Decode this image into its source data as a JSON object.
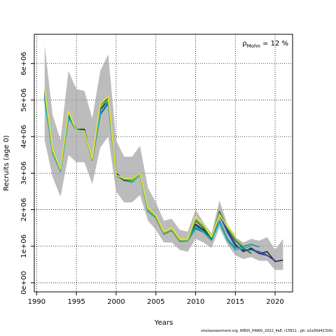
{
  "chart_data": {
    "type": "line",
    "xlabel": "Years",
    "ylabel": "Recruits (age 0)",
    "xlim": [
      1989.7,
      2022.2
    ],
    "ylim": [
      -250000,
      6800000
    ],
    "x_ticks": [
      1990,
      1995,
      2000,
      2005,
      2010,
      2015,
      2020
    ],
    "x_tick_labels": [
      "1990",
      "1995",
      "2000",
      "2005",
      "2010",
      "2015",
      "2020"
    ],
    "y_ticks": [
      0,
      1000000,
      2000000,
      3000000,
      4000000,
      5000000,
      6000000
    ],
    "y_tick_labels": [
      "0e+00",
      "1e+06",
      "2e+06",
      "3e+06",
      "4e+06",
      "5e+06",
      "6e+06"
    ],
    "grid": true,
    "annotation": {
      "main": "ρ",
      "sub": "Mohn",
      "rest": " = 12 %"
    },
    "band": {
      "x": [
        1991,
        1992,
        1993,
        1994,
        1995,
        1996,
        1997,
        1998,
        1999,
        2000,
        2001,
        2002,
        2003,
        2004,
        2005,
        2006,
        2007,
        2008,
        2009,
        2010,
        2011,
        2012,
        2013,
        2014,
        2015,
        2016,
        2017,
        2018,
        2019,
        2020,
        2021
      ],
      "upper": [
        6500000,
        4600000,
        3900000,
        5800000,
        5300000,
        5250000,
        4500000,
        5800000,
        6250000,
        3900000,
        3450000,
        3450000,
        3750000,
        2600000,
        2200000,
        1700000,
        1750000,
        1450000,
        1400000,
        2000000,
        1650000,
        1350000,
        2250000,
        1600000,
        1250000,
        1100000,
        1200000,
        1150000,
        1250000,
        900000,
        1200000
      ],
      "lower": [
        3900000,
        2900000,
        2350000,
        3500000,
        3300000,
        3300000,
        2700000,
        3700000,
        4000000,
        2500000,
        2200000,
        2200000,
        2400000,
        1700000,
        1450000,
        1100000,
        1100000,
        900000,
        850000,
        1200000,
        1100000,
        950000,
        1500000,
        1050000,
        750000,
        650000,
        700000,
        600000,
        600000,
        350000,
        350000
      ]
    },
    "series": [
      {
        "color": "#2b2b2b",
        "x": [
          1991,
          1992,
          1993,
          1994,
          1995,
          1996,
          1997,
          1998,
          1999,
          2000,
          2001,
          2002,
          2003,
          2004,
          2005,
          2006,
          2007,
          2008,
          2009,
          2010,
          2011,
          2012,
          2013,
          2014,
          2015,
          2016,
          2017,
          2018,
          2019,
          2020,
          2021
        ],
        "y": [
          5200000,
          3600000,
          3100000,
          4600000,
          4200000,
          4200000,
          3350000,
          4750000,
          5000000,
          3000000,
          2800000,
          2850000,
          3000000,
          2000000,
          1800000,
          1350000,
          1450000,
          1150000,
          1150000,
          1600000,
          1450000,
          1200000,
          1950000,
          1450000,
          1050000,
          850000,
          950000,
          800000,
          850000,
          580000,
          620000
        ]
      },
      {
        "color": "#3b2a8f",
        "x": [
          1991,
          1992,
          1993,
          1994,
          1995,
          1996,
          1997,
          1998,
          1999,
          2000,
          2001,
          2002,
          2003,
          2004,
          2005,
          2006,
          2007,
          2008,
          2009,
          2010,
          2011,
          2012,
          2013,
          2014,
          2015,
          2016,
          2017,
          2018,
          2019,
          2020
        ],
        "y": [
          5150000,
          3600000,
          3100000,
          4550000,
          4150000,
          4150000,
          3350000,
          4650000,
          4950000,
          2950000,
          2800000,
          2800000,
          2950000,
          1980000,
          1780000,
          1340000,
          1440000,
          1140000,
          1150000,
          1560000,
          1420000,
          1180000,
          1900000,
          1420000,
          1030000,
          870000,
          920000,
          800000,
          750000,
          600000
        ]
      },
      {
        "color": "#2a5db0",
        "x": [
          1991,
          1992,
          1993,
          1994,
          1995,
          1996,
          1997,
          1998,
          1999,
          2000,
          2001,
          2002,
          2003,
          2004,
          2005,
          2006,
          2007,
          2008,
          2009,
          2010,
          2011,
          2012,
          2013,
          2014,
          2015,
          2016,
          2017,
          2018,
          2019
        ],
        "y": [
          5100000,
          3550000,
          3050000,
          4550000,
          4150000,
          4150000,
          3350000,
          4600000,
          4900000,
          2950000,
          2800000,
          2750000,
          2950000,
          1950000,
          1780000,
          1330000,
          1430000,
          1130000,
          1140000,
          1500000,
          1400000,
          1170000,
          1850000,
          1380000,
          1000000,
          900000,
          900000,
          850000,
          760000
        ]
      },
      {
        "color": "#1d8f8f",
        "x": [
          1991,
          1992,
          1993,
          1994,
          1995,
          1996,
          1997,
          1998,
          1999,
          2000,
          2001,
          2002,
          2003,
          2004,
          2005,
          2006,
          2007,
          2008,
          2009,
          2010,
          2011,
          2012,
          2013,
          2014,
          2015,
          2016,
          2017,
          2018
        ],
        "y": [
          5050000,
          3550000,
          3050000,
          4500000,
          4200000,
          4150000,
          3350000,
          4650000,
          4950000,
          2950000,
          2800000,
          2780000,
          2950000,
          1950000,
          1800000,
          1340000,
          1440000,
          1140000,
          1150000,
          1480000,
          1380000,
          1160000,
          1700000,
          1200000,
          950000,
          1000000,
          1050000,
          980000
        ]
      },
      {
        "color": "#18b5b5",
        "x": [
          1991,
          1992,
          1993,
          1994,
          1995,
          1996,
          1997,
          1998,
          1999,
          2000,
          2001,
          2002,
          2003,
          2004,
          2005,
          2006,
          2007,
          2008,
          2009,
          2010,
          2011,
          2012,
          2013,
          2014,
          2015,
          2016,
          2017
        ],
        "y": [
          5000000,
          3550000,
          3050000,
          4500000,
          4200000,
          4150000,
          3350000,
          4650000,
          5000000,
          2950000,
          2800000,
          2750000,
          2950000,
          1950000,
          1800000,
          1350000,
          1450000,
          1150000,
          1150000,
          1550000,
          1400000,
          1170000,
          1650000,
          1150000,
          900000,
          950000,
          1000000
        ]
      },
      {
        "color": "#1e6e2e",
        "x": [
          1991,
          1992,
          1993,
          1994,
          1995,
          1996,
          1997,
          1998,
          1999,
          2000,
          2001,
          2002,
          2003,
          2004,
          2005,
          2006,
          2007,
          2008,
          2009,
          2010,
          2011,
          2012,
          2013,
          2014,
          2015,
          2016,
          2017
        ],
        "y": [
          5250000,
          3600000,
          3100000,
          4650000,
          4150000,
          4150000,
          3350000,
          4850000,
          5050000,
          2950000,
          2800000,
          2800000,
          2950000,
          2000000,
          1800000,
          1350000,
          1450000,
          1150000,
          1150000,
          1700000,
          1500000,
          1200000,
          1950000,
          1500000,
          1150000,
          950000,
          800000
        ]
      },
      {
        "color": "#7cc042",
        "x": [
          1991,
          1992,
          1993,
          1994,
          1995,
          1996,
          1997,
          1998,
          1999,
          2000,
          2001,
          2002,
          2003,
          2004,
          2005,
          2006,
          2007,
          2008,
          2009,
          2010,
          2011,
          2012,
          2013,
          2014,
          2015,
          2016
        ],
        "y": [
          5250000,
          3600000,
          3100000,
          4650000,
          4150000,
          4150000,
          3350000,
          4850000,
          5000000,
          2950000,
          2850000,
          2800000,
          2950000,
          2000000,
          1800000,
          1350000,
          1450000,
          1150000,
          1150000,
          1750000,
          1550000,
          1250000,
          1900000,
          1500000,
          1200000,
          1000000
        ]
      },
      {
        "color": "#e8e338",
        "x": [
          1991,
          1992,
          1993,
          1994,
          1995,
          1996,
          1997,
          1998,
          1999,
          2000,
          2001,
          2002,
          2003,
          2004,
          2005,
          2006,
          2007,
          2008,
          2009,
          2010,
          2011,
          2012,
          2013,
          2014,
          2015
        ],
        "y": [
          5300000,
          3650000,
          3100000,
          4700000,
          4150000,
          4150000,
          3400000,
          4900000,
          5100000,
          2950000,
          2850000,
          2850000,
          3000000,
          2050000,
          1850000,
          1400000,
          1500000,
          1200000,
          1200000,
          1800000,
          1600000,
          1250000,
          1850000,
          1550000,
          1300000
        ]
      }
    ]
  },
  "footer": "stockassessment.org, WBSS_HAWG_2022_4aE, r15811 , git: e2a30d42316c"
}
